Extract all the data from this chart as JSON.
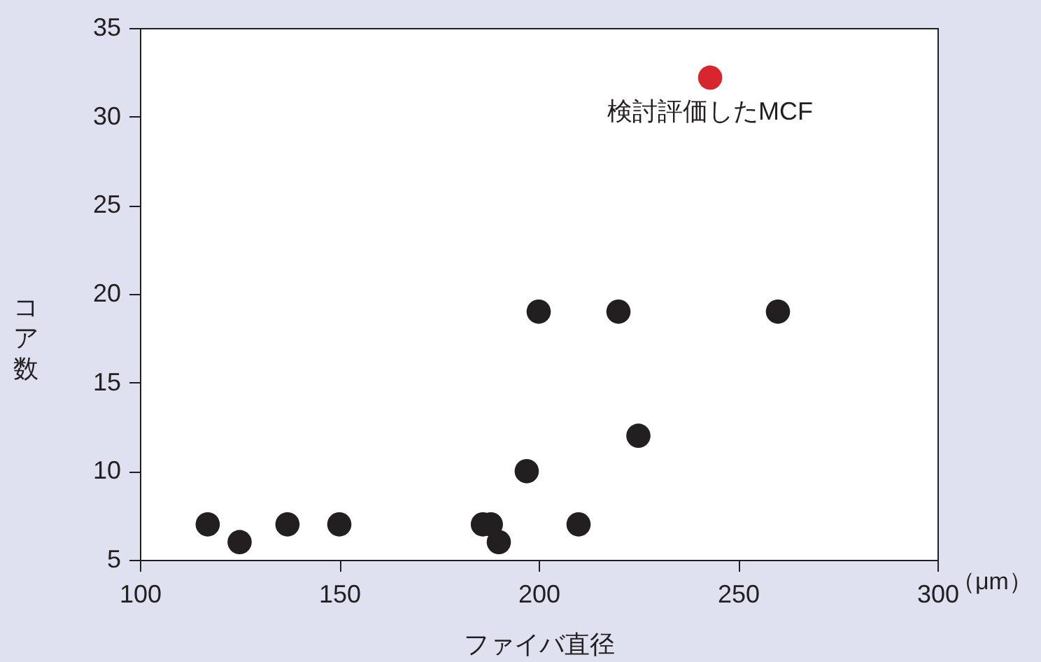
{
  "chart_data": {
    "type": "scatter",
    "xlabel": "ファイバ直径",
    "ylabel": "コア数",
    "xlim": [
      100,
      300
    ],
    "xticks": [
      100,
      150,
      200,
      250,
      300
    ],
    "ylim": [
      5,
      35
    ],
    "yticks": [
      5,
      10,
      15,
      20,
      25,
      30,
      35
    ],
    "grid": false,
    "marker": "circle",
    "series": [
      {
        "color": "#231f20",
        "x": [
          117,
          125,
          137,
          150,
          186,
          188,
          190,
          197,
          200,
          210,
          220,
          225,
          260
        ],
        "values": [
          7,
          6,
          7,
          7,
          7,
          7,
          6,
          10,
          19,
          7,
          19,
          12,
          19
        ]
      },
      {
        "color": "#d7262e",
        "x": [
          243
        ],
        "values": [
          32.2
        ]
      }
    ],
    "annotations": [
      {
        "text": "検討評価したMCF",
        "x": 243,
        "y": 32.2
      },
      "（μm）"
    ]
  }
}
